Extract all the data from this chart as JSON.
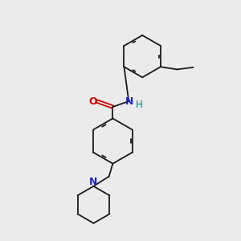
{
  "background_color": "#ebebeb",
  "bond_color": "#1a1a1a",
  "atom_colors": {
    "O": "#cc0000",
    "N_amide": "#2222cc",
    "N_pip": "#2222cc",
    "H": "#008080",
    "C": "#1a1a1a"
  },
  "figsize": [
    3.0,
    3.0
  ],
  "dpi": 100,
  "xlim": [
    0,
    10
  ],
  "ylim": [
    0,
    10
  ]
}
